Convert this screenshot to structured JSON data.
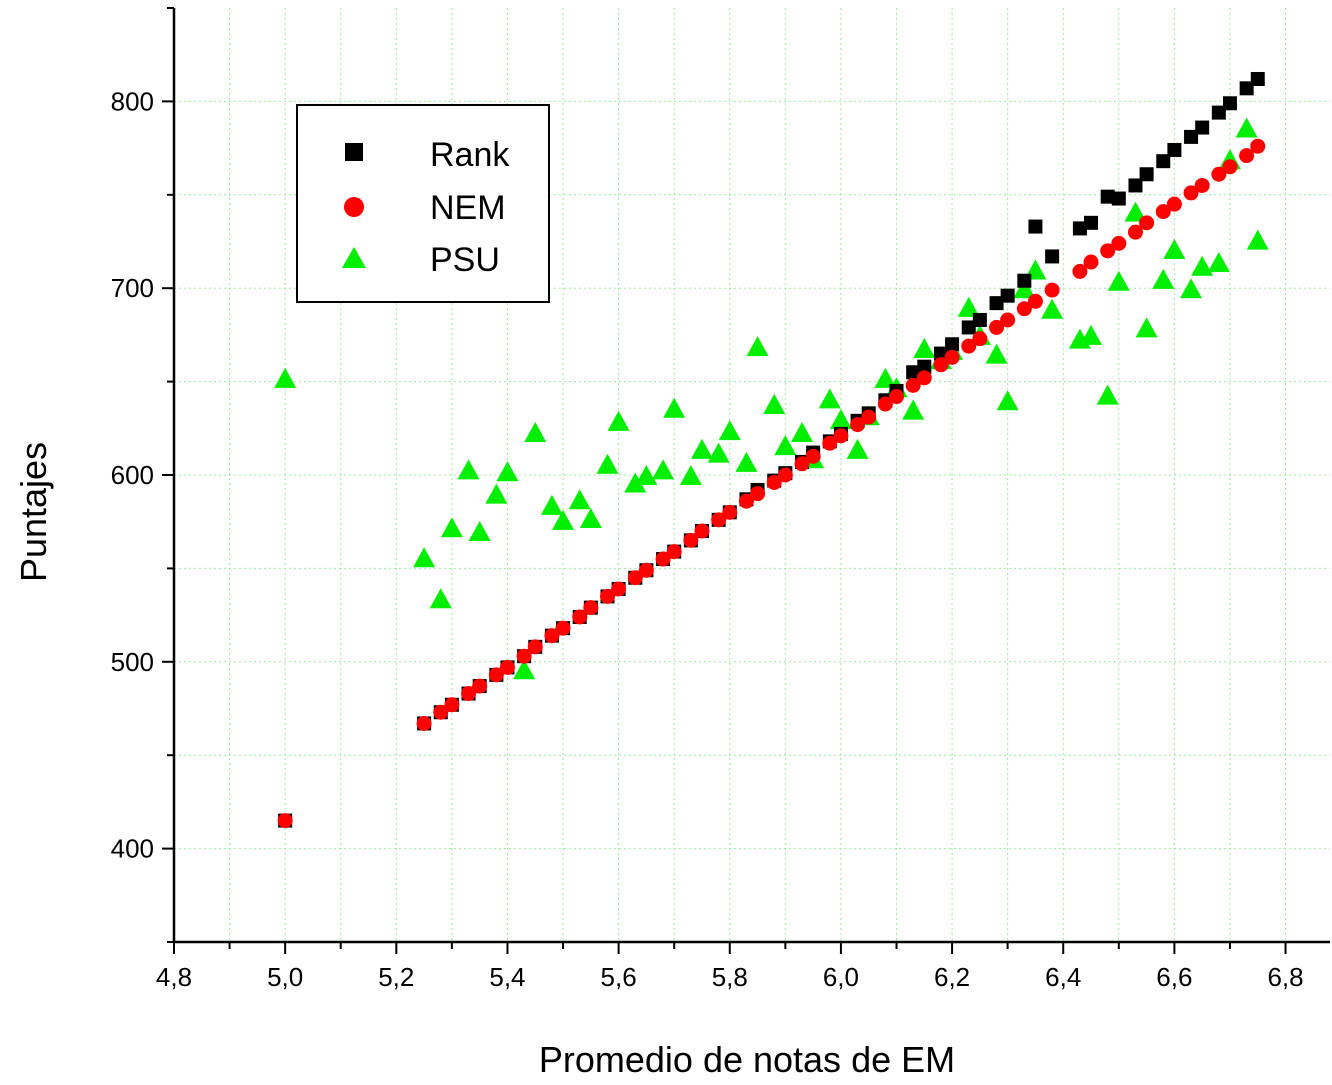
{
  "chart_data": {
    "type": "scatter",
    "xlabel": "Promedio de notas de EM",
    "ylabel": "Puntajes",
    "xlim": [
      4.8,
      6.88
    ],
    "ylim": [
      350,
      850
    ],
    "x_ticks": [
      4.8,
      5.0,
      5.2,
      5.4,
      5.6,
      5.8,
      6.0,
      6.2,
      6.4,
      6.6,
      6.8
    ],
    "x_tick_labels": [
      "4,8",
      "5,0",
      "5,2",
      "5,4",
      "5,6",
      "5,8",
      "6,0",
      "6,2",
      "6,4",
      "6,6",
      "6,8"
    ],
    "y_ticks": [
      400,
      500,
      600,
      700,
      800
    ],
    "y_tick_labels": [
      "400",
      "500",
      "600",
      "700",
      "800"
    ],
    "grid": true,
    "legend_position": "top-left",
    "series": [
      {
        "name": "Rank",
        "marker": "square",
        "color": "#000000",
        "points": [
          [
            5.0,
            415
          ],
          [
            5.25,
            467
          ],
          [
            5.28,
            473
          ],
          [
            5.3,
            477
          ],
          [
            5.33,
            483
          ],
          [
            5.35,
            487
          ],
          [
            5.38,
            493
          ],
          [
            5.4,
            497
          ],
          [
            5.43,
            503
          ],
          [
            5.45,
            508
          ],
          [
            5.48,
            514
          ],
          [
            5.5,
            518
          ],
          [
            5.53,
            524
          ],
          [
            5.55,
            529
          ],
          [
            5.58,
            535
          ],
          [
            5.6,
            539
          ],
          [
            5.63,
            545
          ],
          [
            5.65,
            549
          ],
          [
            5.68,
            555
          ],
          [
            5.7,
            559
          ],
          [
            5.73,
            565
          ],
          [
            5.75,
            570
          ],
          [
            5.78,
            576
          ],
          [
            5.8,
            580
          ],
          [
            5.83,
            587
          ],
          [
            5.85,
            592
          ],
          [
            5.88,
            597
          ],
          [
            5.9,
            601
          ],
          [
            5.93,
            607
          ],
          [
            5.95,
            612
          ],
          [
            5.98,
            618
          ],
          [
            6.0,
            622
          ],
          [
            6.03,
            629
          ],
          [
            6.05,
            633
          ],
          [
            6.08,
            640
          ],
          [
            6.1,
            645
          ],
          [
            6.13,
            655
          ],
          [
            6.15,
            658
          ],
          [
            6.18,
            665
          ],
          [
            6.2,
            670
          ],
          [
            6.23,
            679
          ],
          [
            6.25,
            683
          ],
          [
            6.28,
            692
          ],
          [
            6.3,
            696
          ],
          [
            6.33,
            704
          ],
          [
            6.35,
            733
          ],
          [
            6.38,
            717
          ],
          [
            6.43,
            732
          ],
          [
            6.45,
            735
          ],
          [
            6.48,
            749
          ],
          [
            6.5,
            748
          ],
          [
            6.53,
            755
          ],
          [
            6.55,
            761
          ],
          [
            6.58,
            768
          ],
          [
            6.6,
            774
          ],
          [
            6.63,
            781
          ],
          [
            6.65,
            786
          ],
          [
            6.68,
            794
          ],
          [
            6.7,
            799
          ],
          [
            6.73,
            807
          ],
          [
            6.75,
            812
          ]
        ]
      },
      {
        "name": "NEM",
        "marker": "circle",
        "color": "#ff0000",
        "points": [
          [
            5.0,
            415
          ],
          [
            5.25,
            467
          ],
          [
            5.28,
            473
          ],
          [
            5.3,
            477
          ],
          [
            5.33,
            483
          ],
          [
            5.35,
            487
          ],
          [
            5.38,
            493
          ],
          [
            5.4,
            497
          ],
          [
            5.43,
            503
          ],
          [
            5.45,
            508
          ],
          [
            5.48,
            514
          ],
          [
            5.5,
            518
          ],
          [
            5.53,
            524
          ],
          [
            5.55,
            529
          ],
          [
            5.58,
            535
          ],
          [
            5.6,
            539
          ],
          [
            5.63,
            545
          ],
          [
            5.65,
            549
          ],
          [
            5.68,
            555
          ],
          [
            5.7,
            559
          ],
          [
            5.73,
            565
          ],
          [
            5.75,
            570
          ],
          [
            5.78,
            576
          ],
          [
            5.8,
            580
          ],
          [
            5.83,
            586
          ],
          [
            5.85,
            590
          ],
          [
            5.88,
            596
          ],
          [
            5.9,
            600
          ],
          [
            5.93,
            606
          ],
          [
            5.95,
            610
          ],
          [
            5.98,
            617
          ],
          [
            6.0,
            621
          ],
          [
            6.03,
            627
          ],
          [
            6.05,
            631
          ],
          [
            6.08,
            638
          ],
          [
            6.1,
            642
          ],
          [
            6.13,
            648
          ],
          [
            6.15,
            652
          ],
          [
            6.18,
            659
          ],
          [
            6.2,
            663
          ],
          [
            6.23,
            669
          ],
          [
            6.25,
            673
          ],
          [
            6.28,
            679
          ],
          [
            6.3,
            683
          ],
          [
            6.33,
            689
          ],
          [
            6.35,
            693
          ],
          [
            6.38,
            699
          ],
          [
            6.43,
            709
          ],
          [
            6.45,
            714
          ],
          [
            6.48,
            720
          ],
          [
            6.5,
            724
          ],
          [
            6.53,
            730
          ],
          [
            6.55,
            735
          ],
          [
            6.58,
            741
          ],
          [
            6.6,
            745
          ],
          [
            6.63,
            751
          ],
          [
            6.65,
            755
          ],
          [
            6.68,
            761
          ],
          [
            6.7,
            765
          ],
          [
            6.73,
            771
          ],
          [
            6.75,
            776
          ]
        ]
      },
      {
        "name": "PSU",
        "marker": "triangle",
        "color": "#00ee00",
        "points": [
          [
            5.0,
            652
          ],
          [
            5.25,
            556
          ],
          [
            5.28,
            534
          ],
          [
            5.3,
            572
          ],
          [
            5.33,
            603
          ],
          [
            5.35,
            570
          ],
          [
            5.38,
            590
          ],
          [
            5.4,
            602
          ],
          [
            5.43,
            496
          ],
          [
            5.45,
            623
          ],
          [
            5.48,
            584
          ],
          [
            5.5,
            576
          ],
          [
            5.53,
            587
          ],
          [
            5.55,
            577
          ],
          [
            5.58,
            606
          ],
          [
            5.6,
            629
          ],
          [
            5.63,
            596
          ],
          [
            5.65,
            600
          ],
          [
            5.68,
            603
          ],
          [
            5.7,
            636
          ],
          [
            5.73,
            600
          ],
          [
            5.75,
            614
          ],
          [
            5.78,
            612
          ],
          [
            5.8,
            624
          ],
          [
            5.83,
            607
          ],
          [
            5.85,
            669
          ],
          [
            5.88,
            638
          ],
          [
            5.9,
            616
          ],
          [
            5.93,
            623
          ],
          [
            5.95,
            609
          ],
          [
            5.98,
            641
          ],
          [
            6.0,
            630
          ],
          [
            6.03,
            614
          ],
          [
            6.05,
            632
          ],
          [
            6.08,
            652
          ],
          [
            6.1,
            647
          ],
          [
            6.13,
            635
          ],
          [
            6.15,
            668
          ],
          [
            6.18,
            662
          ],
          [
            6.2,
            667
          ],
          [
            6.23,
            690
          ],
          [
            6.25,
            675
          ],
          [
            6.28,
            665
          ],
          [
            6.3,
            640
          ],
          [
            6.33,
            700
          ],
          [
            6.35,
            710
          ],
          [
            6.38,
            689
          ],
          [
            6.43,
            673
          ],
          [
            6.45,
            675
          ],
          [
            6.48,
            643
          ],
          [
            6.5,
            704
          ],
          [
            6.53,
            741
          ],
          [
            6.55,
            679
          ],
          [
            6.58,
            705
          ],
          [
            6.6,
            721
          ],
          [
            6.63,
            700
          ],
          [
            6.65,
            712
          ],
          [
            6.68,
            714
          ],
          [
            6.7,
            769
          ],
          [
            6.73,
            786
          ],
          [
            6.75,
            726
          ]
        ]
      }
    ]
  }
}
